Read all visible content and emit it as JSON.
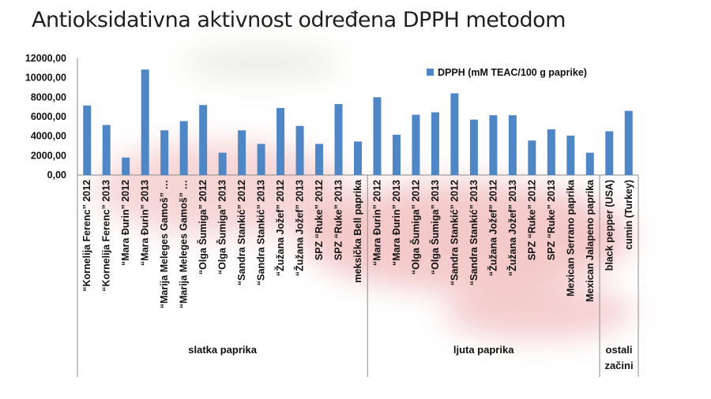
{
  "title": "Antioksidativna aktivnost određena DPPH metodom",
  "colors": {
    "bar": "#4F86C6",
    "axis": "#8a8a8a",
    "text": "#111111",
    "background_pepper": "#d94141"
  },
  "chart_data": {
    "type": "bar",
    "title": "Antioksidativna aktivnost određena DPPH metodom",
    "ylim": [
      0,
      12000
    ],
    "yticks": [
      "0,00",
      "2000,00",
      "4000,00",
      "6000,00",
      "8000,00",
      "10000,00",
      "12000,00"
    ],
    "grid": false,
    "legend_position": "top-right",
    "series": [
      {
        "name": "DPPH (mM TEAC/100 g paprike)",
        "values": [
          7150,
          5150,
          1800,
          10850,
          4600,
          5550,
          7200,
          2300,
          4600,
          3200,
          6900,
          5050,
          3200,
          7300,
          3450,
          8000,
          4150,
          6200,
          6450,
          8400,
          5700,
          6150,
          6150,
          3550,
          4700,
          4050,
          2300,
          4500,
          6600
        ]
      }
    ],
    "categories": [
      "“Kornelija Ferenc” 2012",
      "“Kornelija Ferenc” 2013",
      "“Mara Đurin” 2012",
      "“Mara Đurin” 2013",
      "“Marija Meleges Gamoš” …",
      "“Marija Meleges Gamoš” …",
      "“Olga Šumiga” 2012",
      "“Olga Šumiga” 2013",
      "“Sandra Stankić” 2012",
      "“Sandra Stankić” 2013",
      "“Žužana Jožef” 2012",
      "“Žužana Jožef” 2013",
      "SPZ “Ruke” 2012",
      "SPZ “Ruke” 2013",
      "meksička Bell paprika",
      "“Mara Đurin” 2012",
      "“Mara Đurin” 2013",
      "“Olga Šumiga” 2012",
      "“Olga Šumiga” 2013",
      "“Sandra Stankić” 2012",
      "“Sandra Stankić” 2013",
      "“Žužana Jožef” 2012",
      "“Žužana Jožef” 2013",
      "SPZ “Ruke” 2012",
      "SPZ “Ruke” 2013",
      "Mexican Serrano paprika",
      "Mexican Jalapeno paprika",
      "black pepper (USA)",
      "cumin (Turkey)"
    ],
    "groups": [
      {
        "label": "slatka paprika",
        "start": 0,
        "end": 14
      },
      {
        "label": "ljuta paprika",
        "start": 15,
        "end": 26
      },
      {
        "label": "ostali začini",
        "start": 27,
        "end": 28
      }
    ]
  }
}
